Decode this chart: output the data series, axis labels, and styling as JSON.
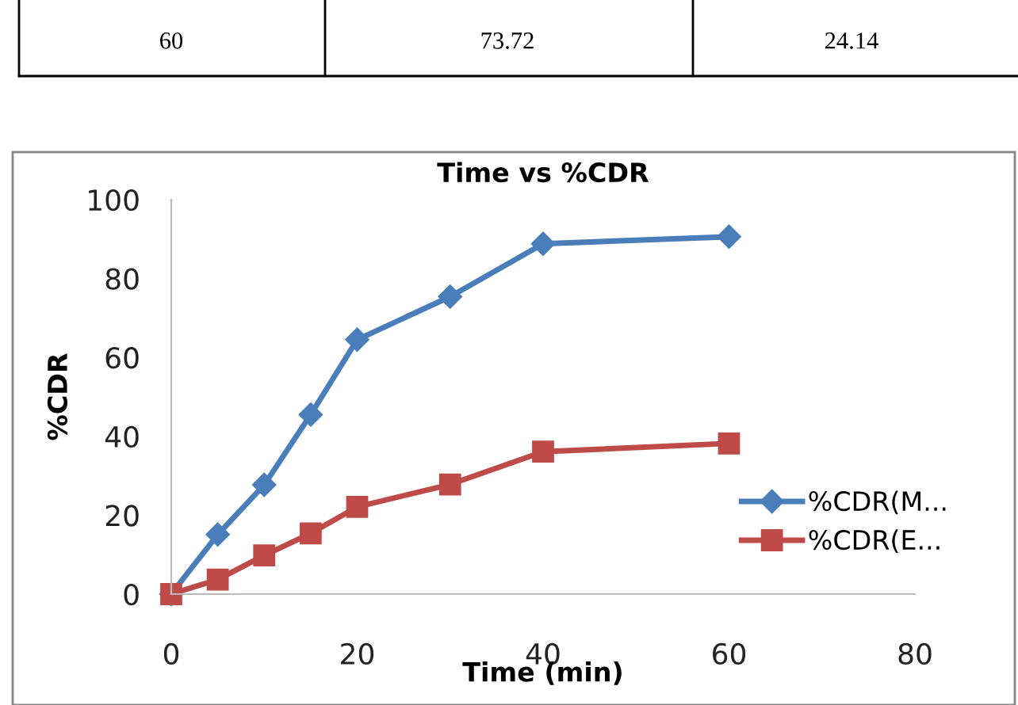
{
  "chart_data": {
    "type": "line",
    "title": "Time vs %CDR",
    "xlabel": "Time (min)",
    "ylabel": "%CDR",
    "x": [
      0,
      5,
      10,
      15,
      20,
      30,
      40,
      60
    ],
    "series": [
      {
        "name": "%CDR(M...",
        "color": "#4a7ebb",
        "marker": "diamond",
        "values": [
          0,
          15.1,
          27.7,
          45.5,
          64.5,
          75.4,
          88.8,
          90.6
        ]
      },
      {
        "name": "%CDR(E...",
        "color": "#be4b48",
        "marker": "square",
        "values": [
          0,
          3.7,
          9.8,
          15.4,
          22.1,
          27.8,
          36.1,
          38.2
        ]
      }
    ],
    "xlim": [
      0,
      80
    ],
    "xticks": [
      0,
      20,
      40,
      60,
      80
    ],
    "ylim": [
      0,
      100
    ],
    "yticks": [
      0,
      20,
      40,
      60,
      80,
      100
    ],
    "grid": false,
    "legend": "right",
    "annotations": [
      "60",
      "73.72",
      "24.14"
    ]
  }
}
